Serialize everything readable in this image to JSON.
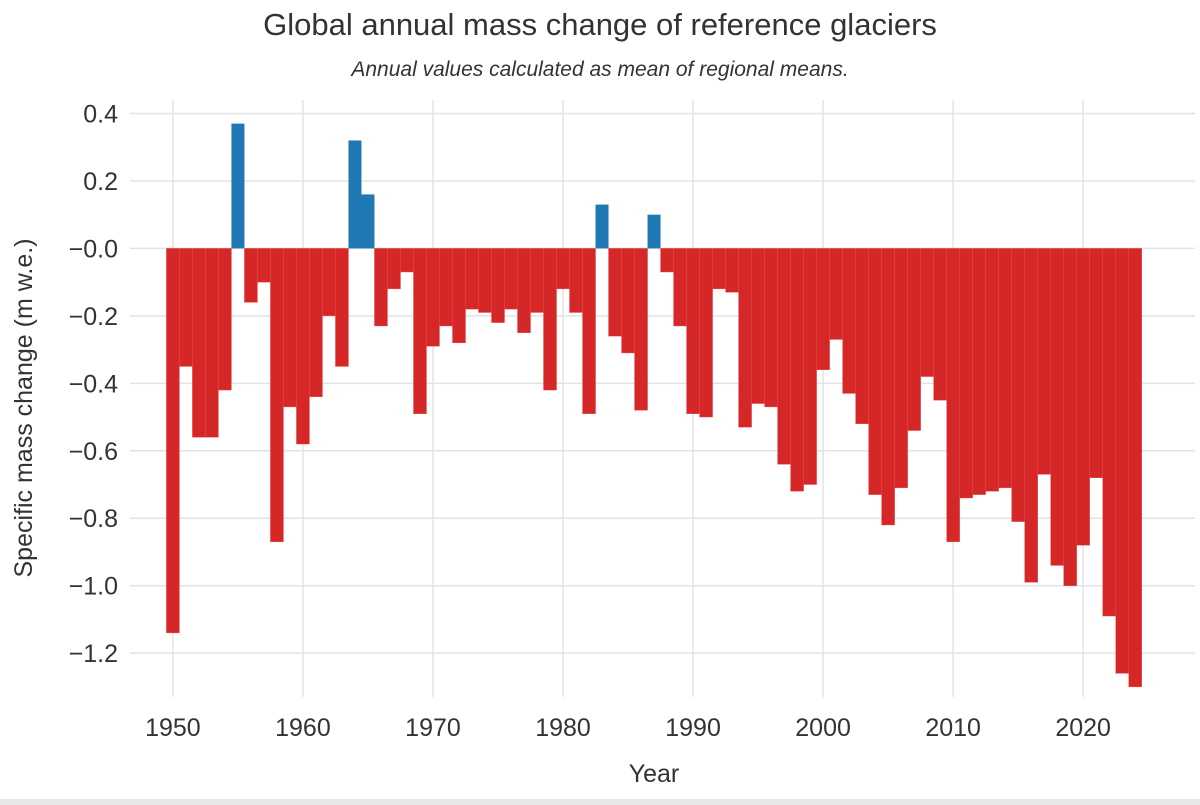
{
  "chart_data": {
    "type": "bar",
    "title": "Global annual mass change of reference glaciers",
    "subtitle": "Annual values calculated as mean of regional means.",
    "xlabel": "Year",
    "ylabel": "Specific mass change (m w.e.)",
    "xlim": [
      1946.7,
      2028.6
    ],
    "ylim": [
      -1.33,
      0.44
    ],
    "grid": true,
    "x_ticks": [
      "1950",
      "1960",
      "1970",
      "1980",
      "1990",
      "2000",
      "2010",
      "2020"
    ],
    "y_ticks": [
      "0.4",
      "0.2",
      "−0.0",
      "−0.2",
      "−0.4",
      "−0.6",
      "−0.8",
      "−1.0",
      "−1.2"
    ],
    "colors": {
      "positive": "#1f77b4",
      "negative": "#d62728"
    },
    "x": [
      1950,
      1951,
      1952,
      1953,
      1954,
      1955,
      1956,
      1957,
      1958,
      1959,
      1960,
      1961,
      1962,
      1963,
      1964,
      1965,
      1966,
      1967,
      1968,
      1969,
      1970,
      1971,
      1972,
      1973,
      1974,
      1975,
      1976,
      1977,
      1978,
      1979,
      1980,
      1981,
      1982,
      1983,
      1984,
      1985,
      1986,
      1987,
      1988,
      1989,
      1990,
      1991,
      1992,
      1993,
      1994,
      1995,
      1996,
      1997,
      1998,
      1999,
      2000,
      2001,
      2002,
      2003,
      2004,
      2005,
      2006,
      2007,
      2008,
      2009,
      2010,
      2011,
      2012,
      2013,
      2014,
      2015,
      2016,
      2017,
      2018,
      2019,
      2020,
      2021,
      2022,
      2023,
      2024
    ],
    "values": [
      -1.14,
      -0.35,
      -0.56,
      -0.56,
      -0.42,
      0.37,
      -0.16,
      -0.1,
      -0.87,
      -0.47,
      -0.58,
      -0.44,
      -0.2,
      -0.35,
      0.32,
      0.16,
      -0.23,
      -0.12,
      -0.07,
      -0.49,
      -0.29,
      -0.23,
      -0.28,
      -0.18,
      -0.19,
      -0.22,
      -0.18,
      -0.25,
      -0.19,
      -0.42,
      -0.12,
      -0.19,
      -0.49,
      0.13,
      -0.26,
      -0.31,
      -0.48,
      0.1,
      -0.07,
      -0.23,
      -0.49,
      -0.5,
      -0.12,
      -0.13,
      -0.53,
      -0.46,
      -0.47,
      -0.64,
      -0.72,
      -0.7,
      -0.36,
      -0.27,
      -0.43,
      -0.52,
      -0.73,
      -0.82,
      -0.71,
      -0.54,
      -0.38,
      -0.45,
      -0.87,
      -0.74,
      -0.73,
      -0.72,
      -0.71,
      -0.81,
      -0.99,
      -0.67,
      -0.94,
      -1.0,
      -0.88,
      -0.68,
      -1.09,
      -1.26,
      -1.3
    ]
  }
}
